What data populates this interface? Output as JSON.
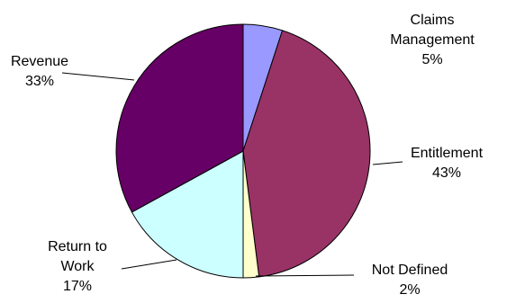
{
  "chart_data": {
    "type": "pie",
    "title": "",
    "slices": [
      {
        "label_lines": [
          "Claims",
          "Management"
        ],
        "label": "Claims Management",
        "value": 5,
        "pct_label": "5%",
        "color": "#9999ff"
      },
      {
        "label_lines": [
          "Entitlement"
        ],
        "label": "Entitlement",
        "value": 43,
        "pct_label": "43%",
        "color": "#993366"
      },
      {
        "label_lines": [
          "Not Defined"
        ],
        "label": "Not Defined",
        "value": 2,
        "pct_label": "2%",
        "color": "#ffffcc"
      },
      {
        "label_lines": [
          "Return to",
          "Work"
        ],
        "label": "Return to Work",
        "value": 17,
        "pct_label": "17%",
        "color": "#ccffff"
      },
      {
        "label_lines": [
          "Revenue"
        ],
        "label": "Revenue",
        "value": 33,
        "pct_label": "33%",
        "color": "#660066"
      }
    ]
  }
}
